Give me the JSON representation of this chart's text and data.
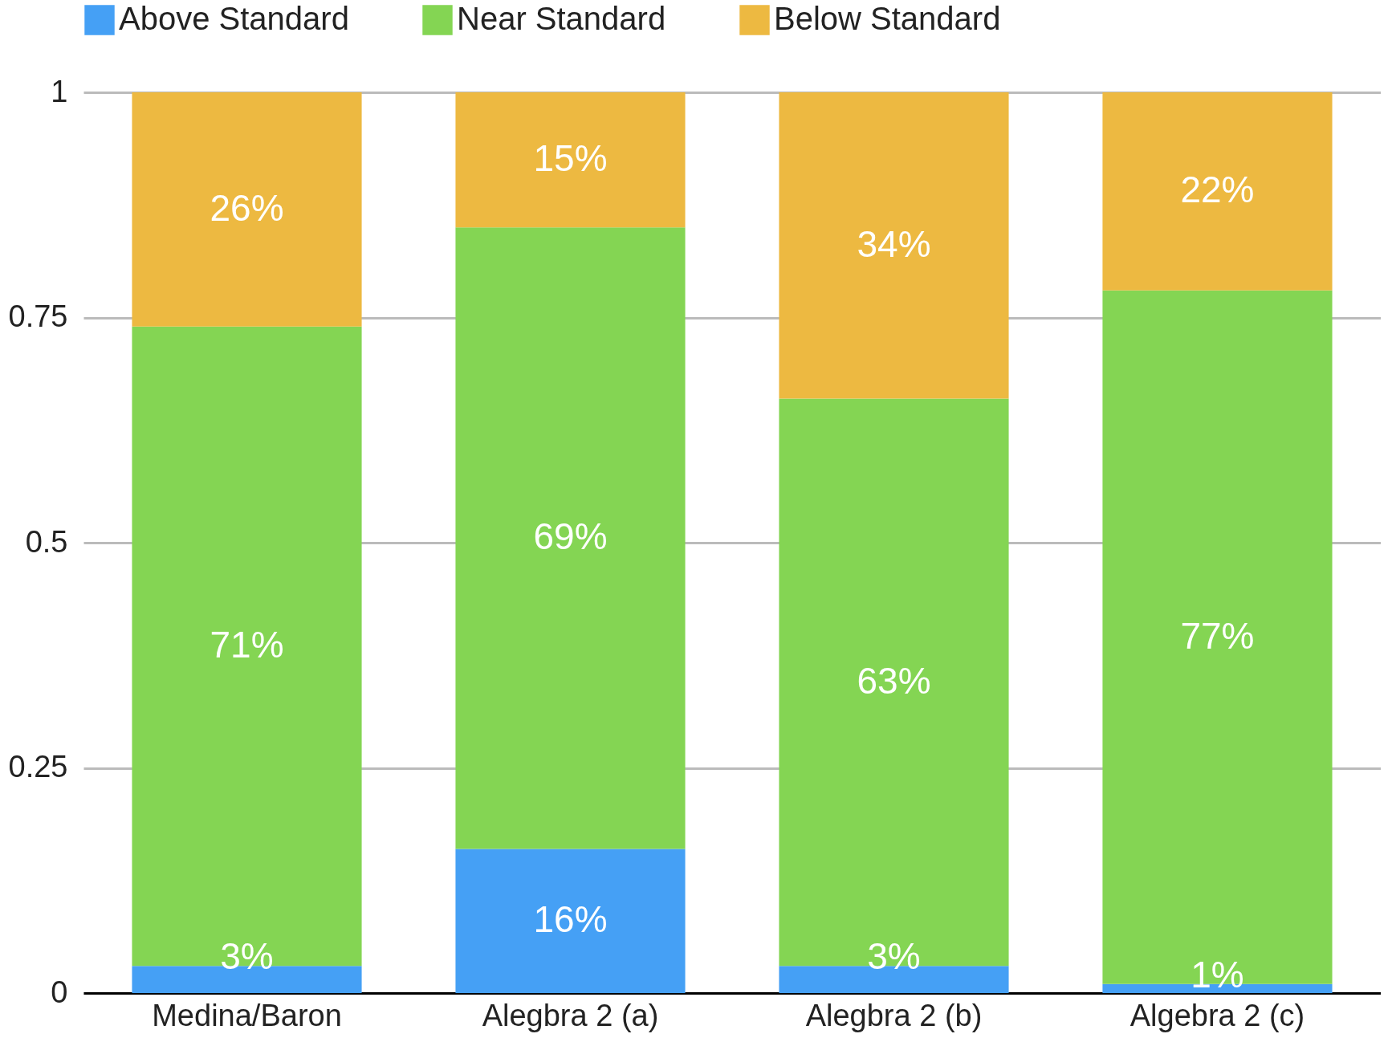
{
  "chart_data": {
    "type": "bar",
    "stacked": true,
    "categories": [
      "Medina/Baron",
      "Alegbra 2 (a)",
      "Alegbra 2 (b)",
      "Algebra 2 (c)"
    ],
    "series": [
      {
        "name": "Above Standard",
        "color": "#45a0f5",
        "values": [
          0.03,
          0.16,
          0.03,
          0.01
        ],
        "value_labels": [
          "3%",
          "16%",
          "3%",
          "1%"
        ]
      },
      {
        "name": "Near Standard",
        "color": "#84d553",
        "values": [
          0.71,
          0.69,
          0.63,
          0.77
        ],
        "value_labels": [
          "71%",
          "69%",
          "63%",
          "77%"
        ]
      },
      {
        "name": "Below Standard",
        "color": "#edb941",
        "values": [
          0.26,
          0.15,
          0.34,
          0.22
        ],
        "value_labels": [
          "26%",
          "15%",
          "34%",
          "22%"
        ]
      }
    ],
    "ylim": [
      0,
      1
    ],
    "yticks": [
      0,
      0.25,
      0.5,
      0.75,
      1
    ],
    "grid": "y",
    "legend": "top"
  }
}
